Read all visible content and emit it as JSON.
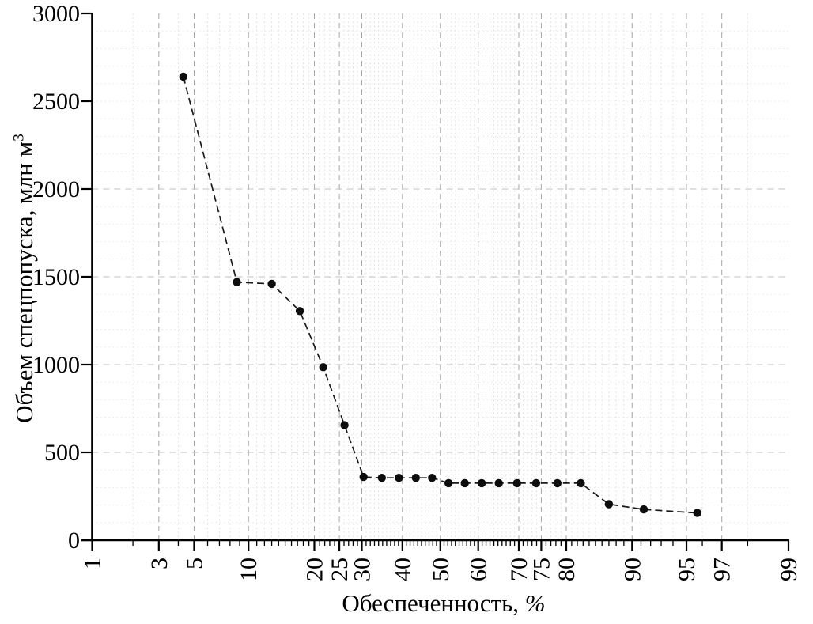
{
  "figure": {
    "xlabel_main": "Обеспеченность, ",
    "xlabel_percent": "%",
    "ylabel_main": "Объем спецпопуска, млн м",
    "ylabel_sup": "3"
  },
  "chart_data": {
    "type": "line",
    "title": "",
    "xlabel": "Обеспеченность, %",
    "ylabel": "Объем спецпопуска, млн м³",
    "x_scale": "normal-probability",
    "xlim": [
      1,
      99
    ],
    "ylim": [
      0,
      3000
    ],
    "x_ticks_major": [
      1,
      3,
      5,
      10,
      20,
      25,
      30,
      40,
      50,
      60,
      70,
      75,
      80,
      90,
      95,
      97,
      99
    ],
    "x_minor_tick_step": 1,
    "y_ticks_major": [
      0,
      500,
      1000,
      1500,
      2000,
      2500,
      3000
    ],
    "y_grid_major_lines": [
      500,
      1000,
      1500,
      2000
    ],
    "y_minor_step": 100,
    "grid": {
      "major_style": "dashed",
      "minor_style": "dotted",
      "legend": "none"
    },
    "series": [
      {
        "name": "special-release-volume",
        "marker": "circle",
        "line_style": "dashed",
        "points": [
          {
            "p": 4.3,
            "v": 2640
          },
          {
            "p": 8.7,
            "v": 1470
          },
          {
            "p": 13.0,
            "v": 1460
          },
          {
            "p": 17.4,
            "v": 1305
          },
          {
            "p": 21.7,
            "v": 985
          },
          {
            "p": 26.1,
            "v": 655
          },
          {
            "p": 30.4,
            "v": 360
          },
          {
            "p": 34.8,
            "v": 355
          },
          {
            "p": 39.1,
            "v": 355
          },
          {
            "p": 43.5,
            "v": 355
          },
          {
            "p": 47.8,
            "v": 355
          },
          {
            "p": 52.2,
            "v": 325
          },
          {
            "p": 56.5,
            "v": 325
          },
          {
            "p": 60.9,
            "v": 325
          },
          {
            "p": 65.2,
            "v": 325
          },
          {
            "p": 69.6,
            "v": 325
          },
          {
            "p": 73.9,
            "v": 325
          },
          {
            "p": 78.3,
            "v": 325
          },
          {
            "p": 82.6,
            "v": 325
          },
          {
            "p": 87.0,
            "v": 205
          },
          {
            "p": 91.3,
            "v": 175
          },
          {
            "p": 95.7,
            "v": 155
          }
        ]
      }
    ]
  },
  "colors": {
    "background": "#ffffff",
    "axis": "#000000",
    "text": "#000000",
    "series_line": "#1a1a1a",
    "marker": "#0d0d0d",
    "grid_major_v": "#a6a6a6",
    "grid_major_h": "#c2c2c2",
    "grid_minor_v": "#dcdcdc",
    "grid_minor_h": "#e8e8e8"
  }
}
